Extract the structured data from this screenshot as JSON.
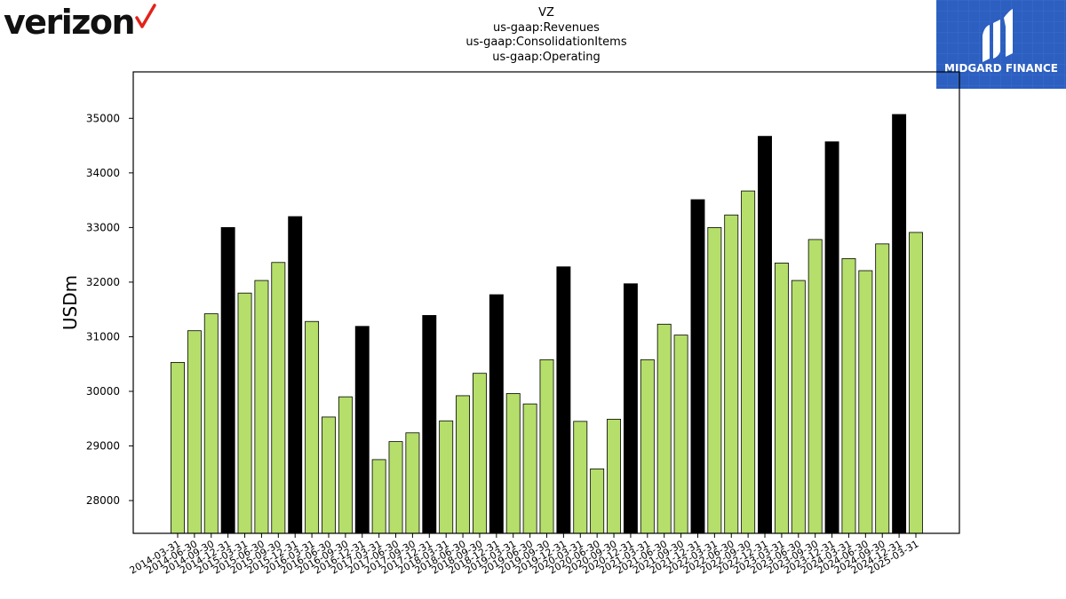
{
  "logos": {
    "left_text": "verizon",
    "right_text": "MIDGARD FINANCE"
  },
  "chart_data": {
    "type": "bar",
    "title_lines": [
      "VZ",
      "us-gaap:Revenues",
      "us-gaap:ConsolidationItems",
      "us-gaap:Operating"
    ],
    "xlabel": "",
    "ylabel": "USDm",
    "ylim": [
      27400,
      35850
    ],
    "yticks": [
      28000,
      29000,
      30000,
      31000,
      32000,
      33000,
      34000,
      35000
    ],
    "grid": false,
    "colors": {
      "quarter": "#b5de6b",
      "q4": "#000000",
      "edge": "#000000"
    },
    "categories": [
      "2014-03-31",
      "2014-06-30",
      "2014-09-30",
      "2014-12-31",
      "2015-03-31",
      "2015-06-30",
      "2015-09-30",
      "2015-12-31",
      "2016-03-31",
      "2016-06-30",
      "2016-09-30",
      "2016-12-31",
      "2017-03-31",
      "2017-06-30",
      "2017-09-30",
      "2017-12-31",
      "2018-03-31",
      "2018-06-30",
      "2018-09-30",
      "2018-12-31",
      "2019-03-31",
      "2019-06-30",
      "2019-09-30",
      "2019-12-31",
      "2020-03-31",
      "2020-06-30",
      "2020-09-30",
      "2020-12-31",
      "2021-03-31",
      "2021-06-30",
      "2021-09-30",
      "2021-12-31",
      "2022-03-31",
      "2022-06-30",
      "2022-09-30",
      "2022-12-31",
      "2023-03-31",
      "2023-06-30",
      "2023-09-30",
      "2023-12-31",
      "2024-03-31",
      "2024-06-30",
      "2024-09-30",
      "2024-12-31",
      "2025-03-31"
    ],
    "values": [
      30530,
      31110,
      31420,
      33000,
      31800,
      32030,
      32360,
      33200,
      31280,
      29530,
      29900,
      31190,
      28750,
      29080,
      29240,
      31390,
      29460,
      29920,
      30330,
      31770,
      29960,
      29770,
      30580,
      32280,
      29450,
      28580,
      29490,
      31970,
      30580,
      31230,
      31030,
      33510,
      33000,
      33230,
      33670,
      34670,
      32350,
      32030,
      32780,
      34570,
      32430,
      32210,
      32700,
      35070,
      32910
    ],
    "highlight": [
      false,
      false,
      false,
      true,
      false,
      false,
      false,
      true,
      false,
      false,
      false,
      true,
      false,
      false,
      false,
      true,
      false,
      false,
      false,
      true,
      false,
      false,
      false,
      true,
      false,
      false,
      false,
      true,
      false,
      false,
      false,
      true,
      false,
      false,
      false,
      true,
      false,
      false,
      false,
      true,
      false,
      false,
      false,
      true,
      false
    ]
  }
}
